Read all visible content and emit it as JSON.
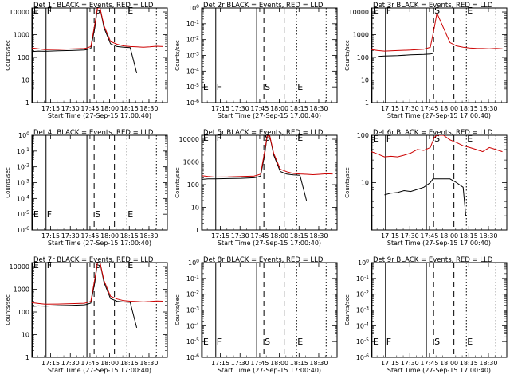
{
  "chart_data": {
    "type": "line",
    "layout": "3x3 grid",
    "time_axis": {
      "range": [
        "17:00:40",
        "18:44:00"
      ],
      "ticks": [
        "17:15",
        "17:30",
        "17:45",
        "18:00",
        "18:15",
        "18:30"
      ],
      "tick_minutes": [
        14.333,
        29.333,
        44.333,
        59.333,
        74.333,
        89.333
      ],
      "range_minutes": [
        0,
        103.333
      ]
    },
    "markers": [
      {
        "label": "E",
        "minute": 0.5,
        "style": "solid"
      },
      {
        "label": "F",
        "minute": 10.8,
        "style": "solid"
      },
      {
        "label": "",
        "minute": 42.0,
        "style": "solid"
      },
      {
        "label": "S",
        "minute": 47.5,
        "style": "dashed"
      },
      {
        "label": "",
        "minute": 63.0,
        "style": "dashed"
      },
      {
        "label": "E",
        "minute": 72.5,
        "style": "dotted"
      },
      {
        "label": "",
        "minute": 95.0,
        "style": "dotted"
      }
    ],
    "panels": [
      {
        "title": "Det 1r BLACK = Events, RED = LLD",
        "xlabel": "Start Time (27-Sep-15 17:00:40)",
        "ylabel": "Counts/sec",
        "yscale": "log",
        "ylim": [
          1,
          15000
        ],
        "yticks": [
          "1",
          "10",
          "100",
          "1000",
          "10000"
        ],
        "ytick_values": [
          1,
          10,
          100,
          1000,
          10000
        ],
        "marker_label_y": 12000,
        "series": [
          {
            "name": "Events",
            "color": "#000000",
            "x": [
              0,
              5,
              10,
              20,
              30,
              40,
              42,
              45,
              48,
              50,
              52,
              55,
              60,
              65,
              70,
              75,
              80
            ],
            "y": [
              180,
              190,
              185,
              195,
              200,
              210,
              220,
              250,
              2000,
              15000,
              15000,
              2000,
              400,
              300,
              280,
              270,
              20
            ]
          },
          {
            "name": "LLD",
            "color": "#cc0000",
            "x": [
              0,
              5,
              10,
              20,
              30,
              40,
              42,
              45,
              48,
              50,
              52,
              55,
              60,
              65,
              70,
              75,
              80,
              85,
              90,
              95,
              100
            ],
            "y": [
              260,
              240,
              220,
              225,
              235,
              245,
              260,
              300,
              3000,
              15000,
              15000,
              2500,
              500,
              380,
              320,
              300,
              290,
              280,
              290,
              310,
              300
            ]
          }
        ]
      },
      {
        "title": "Det 2r BLACK = Events, RED = LLD",
        "xlabel": "Start Time (27-Sep-15 17:00:40)",
        "ylabel": "Counts/sec",
        "yscale": "log",
        "ylim": [
          1e-06,
          1
        ],
        "yticks": [
          "10^0",
          "10^-1",
          "10^-2",
          "10^-3",
          "10^-4",
          "10^-5",
          "10^-6"
        ],
        "ytick_values": [
          1,
          0.1,
          0.01,
          0.001,
          0.0001,
          1e-05,
          1e-06
        ],
        "marker_label_y": 1e-05,
        "series": []
      },
      {
        "title": "Det 3r BLACK = Events, RED = LLD",
        "xlabel": "Start Time (27-Sep-15 17:00:40)",
        "ylabel": "Counts/sec",
        "yscale": "log",
        "ylim": [
          1,
          15000
        ],
        "yticks": [
          "1",
          "10",
          "100",
          "1000",
          "10000"
        ],
        "ytick_values": [
          1,
          10,
          100,
          1000,
          10000
        ],
        "marker_label_y": 12000,
        "series": [
          {
            "name": "Events",
            "color": "#000000",
            "x": [
              5,
              10,
              20,
              30,
              40,
              45,
              47
            ],
            "y": [
              110,
              115,
              120,
              130,
              135,
              140,
              150
            ]
          },
          {
            "name": "LLD",
            "color": "#cc0000",
            "x": [
              0,
              5,
              10,
              20,
              30,
              40,
              45,
              48,
              50,
              55,
              60,
              65,
              70,
              75,
              80,
              85,
              90,
              95,
              100
            ],
            "y": [
              220,
              200,
              190,
              200,
              210,
              230,
              280,
              2000,
              9000,
              2000,
              450,
              320,
              280,
              260,
              250,
              245,
              240,
              250,
              240
            ]
          }
        ]
      },
      {
        "title": "Det 4r BLACK = Events, RED = LLD",
        "xlabel": "Start Time (27-Sep-15 17:00:40)",
        "ylabel": "Counts/sec",
        "yscale": "log",
        "ylim": [
          1e-06,
          1
        ],
        "yticks": [
          "10^0",
          "10^-1",
          "10^-2",
          "10^-3",
          "10^-4",
          "10^-5",
          "10^-6"
        ],
        "ytick_values": [
          1,
          0.1,
          0.01,
          0.001,
          0.0001,
          1e-05,
          1e-06
        ],
        "marker_label_y": 1e-05,
        "series": []
      },
      {
        "title": "Det 5r BLACK = Events, RED = LLD",
        "xlabel": "Start Time (27-Sep-15 17:00:40)",
        "ylabel": "Counts/sec",
        "yscale": "log",
        "ylim": [
          1,
          15000
        ],
        "yticks": [
          "1",
          "10",
          "100",
          "1000",
          "10000"
        ],
        "ytick_values": [
          1,
          10,
          100,
          1000,
          10000
        ],
        "marker_label_y": 12000,
        "series": [
          {
            "name": "Events",
            "color": "#000000",
            "x": [
              0,
              5,
              10,
              20,
              30,
              40,
              42,
              45,
              48,
              50,
              52,
              55,
              60,
              65,
              70,
              75,
              80
            ],
            "y": [
              170,
              180,
              180,
              185,
              190,
              200,
              210,
              240,
              2000,
              14000,
              14000,
              2000,
              380,
              290,
              270,
              260,
              20
            ]
          },
          {
            "name": "LLD",
            "color": "#cc0000",
            "x": [
              0,
              5,
              10,
              20,
              30,
              40,
              42,
              45,
              48,
              50,
              52,
              55,
              60,
              65,
              70,
              75,
              80,
              85,
              90,
              95,
              100
            ],
            "y": [
              250,
              230,
              215,
              220,
              230,
              240,
              255,
              290,
              2800,
              14000,
              14000,
              2400,
              480,
              370,
              310,
              295,
              285,
              275,
              285,
              300,
              295
            ]
          }
        ]
      },
      {
        "title": "Det 6r BLACK = Events, RED = LLD",
        "xlabel": "Start Time (27-Sep-15 17:00:40)",
        "ylabel": "Counts/sec",
        "yscale": "log",
        "ylim": [
          1,
          100
        ],
        "yticks": [
          "1",
          "10",
          "100"
        ],
        "ytick_values": [
          1,
          10,
          100
        ],
        "marker_label_y": 85,
        "series": [
          {
            "name": "Events",
            "color": "#000000",
            "x": [
              10,
              15,
              20,
              25,
              30,
              35,
              40,
              45,
              47,
              60,
              65,
              70,
              72
            ],
            "y": [
              5.5,
              6,
              6.2,
              6.8,
              6.5,
              7.2,
              8,
              10,
              12,
              12,
              10,
              8,
              2
            ]
          },
          {
            "name": "LLD",
            "color": "#cc0000",
            "x": [
              0,
              5,
              10,
              15,
              20,
              25,
              30,
              35,
              40,
              45,
              48,
              50,
              55,
              60,
              65,
              70,
              75,
              80,
              85,
              90,
              95,
              100
            ],
            "y": [
              45,
              40,
              35,
              36,
              35,
              38,
              42,
              50,
              48,
              55,
              90,
              100,
              100,
              80,
              70,
              60,
              55,
              50,
              45,
              55,
              50,
              45
            ]
          }
        ]
      },
      {
        "title": "Det 7r BLACK = Events, RED = LLD",
        "xlabel": "Start Time (27-Sep-15 17:00:40)",
        "ylabel": "Counts/sec",
        "yscale": "log",
        "ylim": [
          1,
          15000
        ],
        "yticks": [
          "1",
          "10",
          "100",
          "1000",
          "10000"
        ],
        "ytick_values": [
          1,
          10,
          100,
          1000,
          10000
        ],
        "marker_label_y": 12000,
        "series": [
          {
            "name": "Events",
            "color": "#000000",
            "x": [
              0,
              5,
              10,
              20,
              30,
              40,
              42,
              45,
              48,
              50,
              52,
              55,
              60,
              65,
              70,
              75,
              80
            ],
            "y": [
              175,
              185,
              180,
              190,
              195,
              205,
              215,
              245,
              2000,
              15000,
              15000,
              2000,
              390,
              295,
              275,
              265,
              20
            ]
          },
          {
            "name": "LLD",
            "color": "#cc0000",
            "x": [
              0,
              5,
              10,
              20,
              30,
              40,
              42,
              45,
              48,
              50,
              52,
              55,
              60,
              65,
              70,
              75,
              80,
              85,
              90,
              95,
              100
            ],
            "y": [
              255,
              235,
              220,
              222,
              232,
              242,
              258,
              295,
              2900,
              15000,
              15000,
              2450,
              490,
              375,
              315,
              298,
              288,
              278,
              288,
              305,
              298
            ]
          }
        ]
      },
      {
        "title": "Det 8r BLACK = Events, RED = LLD",
        "xlabel": "Start Time (27-Sep-15 17:00:40)",
        "ylabel": "Counts/sec",
        "yscale": "log",
        "ylim": [
          1e-06,
          1
        ],
        "yticks": [
          "10^0",
          "10^-1",
          "10^-2",
          "10^-3",
          "10^-4",
          "10^-5",
          "10^-6"
        ],
        "ytick_values": [
          1,
          0.1,
          0.01,
          0.001,
          0.0001,
          1e-05,
          1e-06
        ],
        "marker_label_y": 1e-05,
        "series": []
      },
      {
        "title": "Det 9r BLACK = Events, RED = LLD",
        "xlabel": "Start Time (27-Sep-15 17:00:40)",
        "ylabel": "Counts/sec",
        "yscale": "log",
        "ylim": [
          1e-06,
          1
        ],
        "yticks": [
          "10^0",
          "10^-1",
          "10^-2",
          "10^-3",
          "10^-4",
          "10^-5",
          "10^-6"
        ],
        "ytick_values": [
          1,
          0.1,
          0.01,
          0.001,
          0.0001,
          1e-05,
          1e-06
        ],
        "marker_label_y": 1e-05,
        "series": []
      }
    ]
  }
}
